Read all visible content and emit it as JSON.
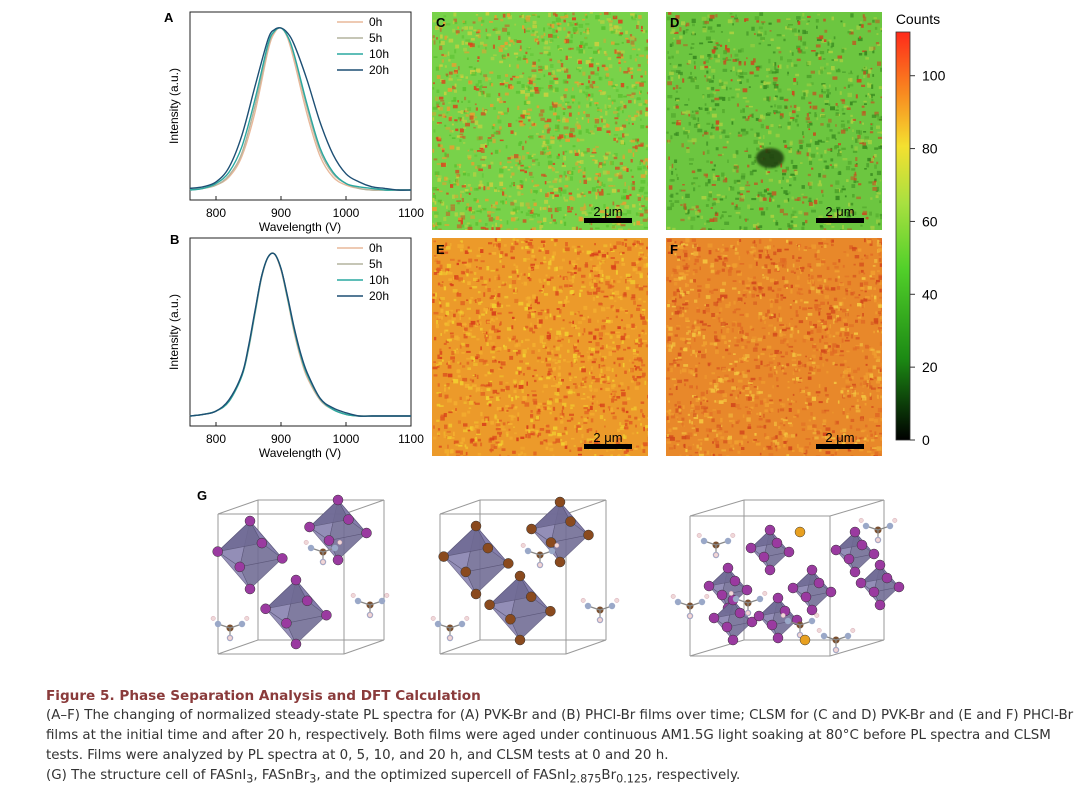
{
  "figure_title": "Figure 5.  Phase Separation Analysis and DFT Calculation",
  "caption_lines": [
    "(A–F) The changing of normalized steady-state PL spectra for (A) PVK-Br and (B) PHCl-Br films over time; CLSM for (C and D) PVK-Br and (E and F) PHCl-Br",
    "films at the initial time and after 20 h, respectively. Both films were aged under continuous AM1.5G light soaking at 80°C before PL spectra and CLSM",
    "tests. Films were analyzed by PL spectra at 0, 5, 10, and 20 h, and CLSM tests at 0 and 20 h."
  ],
  "caption_g": {
    "prefix": "(G) The structure cell of FASnI",
    "sub1": "3",
    "mid1": ", FASnBr",
    "sub2": "3",
    "mid2": ", and the optimized supercell of FASnI",
    "sub3": "2.875",
    "mid3": "Br",
    "sub4": "0.125",
    "suffix": ", respectively."
  },
  "panel_labels": {
    "A": "A",
    "B": "B",
    "C": "C",
    "D": "D",
    "E": "E",
    "F": "F",
    "G": "G"
  },
  "scale_bar_label": "2 μm",
  "colorbar": {
    "title": "Counts",
    "ticks": [
      "100",
      "80",
      "60",
      "40",
      "20",
      "0"
    ],
    "tick_values": [
      100,
      80,
      60,
      40,
      20,
      0
    ],
    "range": [
      0,
      112
    ]
  },
  "map_colors": {
    "C": "#78d24a",
    "D": "#6cc640",
    "E": "#ec9a2a",
    "F": "#e8882a",
    "spot_C": "#d8461e",
    "spot_D": "#c94a1e",
    "spot_E": "#f2d030",
    "spot_F": "#d2481c"
  },
  "chart_data": [
    {
      "type": "line",
      "panel": "A",
      "xlabel": "Wavelength (V)",
      "ylabel": "Intensity (a.u.)",
      "xlim": [
        760,
        1100
      ],
      "xticks": [
        "800",
        "900",
        "1000",
        "1100"
      ],
      "x": [
        760,
        780,
        800,
        820,
        840,
        860,
        880,
        890,
        900,
        910,
        920,
        940,
        960,
        980,
        1000,
        1020,
        1040,
        1060,
        1080,
        1100
      ],
      "series": [
        {
          "name": "0h",
          "color": "#e8b89a",
          "values": [
            0.0,
            0.01,
            0.03,
            0.08,
            0.21,
            0.48,
            0.86,
            0.97,
            1.0,
            0.94,
            0.8,
            0.47,
            0.21,
            0.08,
            0.03,
            0.01,
            0.0,
            0.0,
            0.0,
            0.0
          ]
        },
        {
          "name": "5h",
          "color": "#b4b39d",
          "values": [
            0.0,
            0.01,
            0.03,
            0.09,
            0.23,
            0.52,
            0.88,
            0.98,
            1.0,
            0.95,
            0.83,
            0.51,
            0.24,
            0.1,
            0.04,
            0.01,
            0.0,
            0.0,
            0.0,
            0.0
          ]
        },
        {
          "name": "10h",
          "color": "#2aa8a0",
          "values": [
            0.0,
            0.01,
            0.04,
            0.11,
            0.27,
            0.56,
            0.9,
            0.98,
            1.0,
            0.95,
            0.84,
            0.53,
            0.26,
            0.11,
            0.04,
            0.02,
            0.01,
            0.0,
            0.0,
            0.0
          ]
        },
        {
          "name": "20h",
          "color": "#1d4f74",
          "values": [
            0.01,
            0.02,
            0.05,
            0.14,
            0.34,
            0.64,
            0.93,
            0.99,
            1.0,
            0.97,
            0.9,
            0.68,
            0.42,
            0.22,
            0.1,
            0.05,
            0.02,
            0.01,
            0.0,
            0.0
          ]
        }
      ]
    },
    {
      "type": "line",
      "panel": "B",
      "xlabel": "Wavelength (V)",
      "ylabel": "Intensity (a.u.)",
      "xlim": [
        760,
        1100
      ],
      "xticks": [
        "800",
        "900",
        "1000",
        "1100"
      ],
      "x": [
        760,
        780,
        800,
        820,
        840,
        850,
        860,
        870,
        880,
        890,
        900,
        910,
        920,
        930,
        940,
        960,
        980,
        1000,
        1020,
        1040,
        1060,
        1080,
        1100
      ],
      "series": [
        {
          "name": "0h",
          "color": "#e8b89a",
          "values": [
            0.0,
            0.01,
            0.03,
            0.09,
            0.25,
            0.42,
            0.64,
            0.86,
            0.98,
            1.0,
            0.9,
            0.72,
            0.52,
            0.36,
            0.24,
            0.1,
            0.04,
            0.01,
            0.0,
            0.0,
            0.0,
            0.0,
            0.0
          ]
        },
        {
          "name": "5h",
          "color": "#b4b39d",
          "values": [
            0.0,
            0.01,
            0.03,
            0.09,
            0.25,
            0.41,
            0.63,
            0.85,
            0.98,
            1.0,
            0.91,
            0.73,
            0.53,
            0.37,
            0.25,
            0.1,
            0.04,
            0.01,
            0.0,
            0.0,
            0.0,
            0.0,
            0.0
          ]
        },
        {
          "name": "10h",
          "color": "#2aa8a0",
          "values": [
            0.0,
            0.01,
            0.03,
            0.09,
            0.25,
            0.42,
            0.64,
            0.86,
            0.98,
            1.0,
            0.91,
            0.73,
            0.54,
            0.38,
            0.26,
            0.11,
            0.04,
            0.01,
            0.0,
            0.0,
            0.0,
            0.0,
            0.0
          ]
        },
        {
          "name": "20h",
          "color": "#1d4f74",
          "values": [
            0.0,
            0.01,
            0.03,
            0.1,
            0.26,
            0.43,
            0.65,
            0.86,
            0.98,
            1.0,
            0.91,
            0.74,
            0.55,
            0.39,
            0.27,
            0.11,
            0.05,
            0.02,
            0.0,
            0.0,
            0.0,
            0.0,
            0.0
          ]
        }
      ]
    }
  ],
  "atom_colors": {
    "I": "#9a3aa0",
    "Br": "#8a4a1e",
    "Sn": "#8878b8",
    "C": "#7a5030",
    "N": "#9aa8c8",
    "H": "#f0d8d8",
    "doped": "#e8a020"
  }
}
